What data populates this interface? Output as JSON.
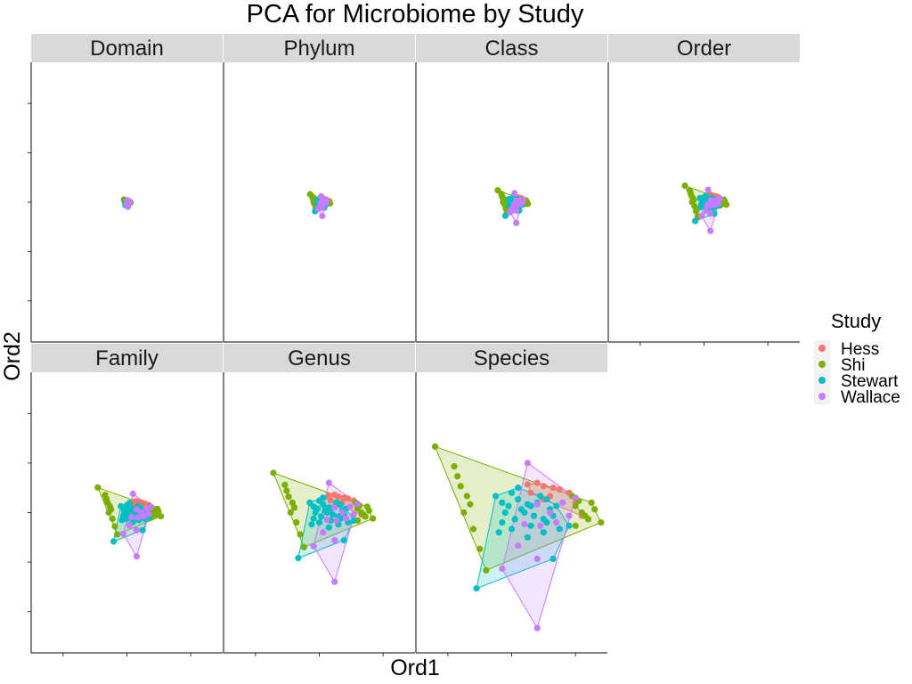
{
  "chart_data": {
    "type": "scatter",
    "title": "PCA for Microbiome by Study",
    "xlabel": "Ord1",
    "ylabel": "Ord2",
    "xlim": [
      -0.3,
      0.3
    ],
    "ylim": [
      -0.85,
      0.85
    ],
    "grid": false,
    "legend": {
      "title": "Study",
      "position": "right",
      "entries": [
        "Hess",
        "Shi",
        "Stewart",
        "Wallace"
      ]
    },
    "colors": {
      "Hess": "#F8766D",
      "Shi": "#7CAE00",
      "Stewart": "#00BFC4",
      "Wallace": "#C77CFF"
    },
    "panels": [
      {
        "name": "Domain",
        "spread": 0.04
      },
      {
        "name": "Phylum",
        "spread": 0.12
      },
      {
        "name": "Class",
        "spread": 0.18
      },
      {
        "name": "Order",
        "spread": 0.25
      },
      {
        "name": "Family",
        "spread": 0.38
      },
      {
        "name": "Genus",
        "spread": 0.6
      },
      {
        "name": "Species",
        "spread": 1.0
      }
    ],
    "series": [
      {
        "name": "Hess",
        "points": [
          [
            0.05,
            0.17
          ],
          [
            0.08,
            0.18
          ],
          [
            0.1,
            0.16
          ],
          [
            0.13,
            0.15
          ],
          [
            0.18,
            0.12
          ],
          [
            0.15,
            0.14
          ],
          [
            0.2,
            0.06
          ],
          [
            0.22,
            -0.02
          ],
          [
            0.06,
            0.12
          ],
          [
            0.12,
            0.1
          ],
          [
            0.1,
            0.08
          ]
        ]
      },
      {
        "name": "Shi",
        "points": [
          [
            -0.24,
            0.4
          ],
          [
            -0.18,
            0.28
          ],
          [
            -0.17,
            0.22
          ],
          [
            -0.16,
            0.16
          ],
          [
            -0.14,
            0.1
          ],
          [
            -0.13,
            0.05
          ],
          [
            -0.15,
            0.0
          ],
          [
            -0.12,
            -0.1
          ],
          [
            -0.1,
            -0.22
          ],
          [
            -0.08,
            -0.35
          ],
          [
            0.2,
            0.04
          ],
          [
            0.22,
            0.0
          ],
          [
            0.24,
            -0.04
          ],
          [
            0.28,
            -0.06
          ],
          [
            0.26,
            0.02
          ],
          [
            0.2,
            -0.08
          ],
          [
            0.23,
            -0.02
          ],
          [
            0.25,
            0.06
          ],
          [
            0.19,
            0.1
          ],
          [
            0.21,
            0.07
          ]
        ]
      },
      {
        "name": "Stewart",
        "points": [
          [
            -0.11,
            -0.46
          ],
          [
            -0.05,
            0.1
          ],
          [
            -0.03,
            -0.06
          ],
          [
            -0.01,
            0.04
          ],
          [
            0.01,
            -0.04
          ],
          [
            0.03,
            0.02
          ],
          [
            0.05,
            0.05
          ],
          [
            0.07,
            -0.02
          ],
          [
            0.0,
            0.12
          ],
          [
            0.02,
            0.08
          ],
          [
            0.04,
            0.0
          ],
          [
            -0.02,
            0.0
          ],
          [
            0.06,
            0.04
          ],
          [
            0.08,
            0.06
          ],
          [
            0.1,
            -0.04
          ],
          [
            0.12,
            0.02
          ],
          [
            0.09,
            0.1
          ],
          [
            0.11,
            -0.06
          ],
          [
            0.0,
            -0.1
          ],
          [
            0.05,
            -0.15
          ],
          [
            0.1,
            -0.12
          ],
          [
            0.15,
            -0.1
          ],
          [
            0.18,
            -0.08
          ],
          [
            -0.04,
            -0.12
          ],
          [
            0.14,
            0.04
          ],
          [
            0.13,
            -0.02
          ],
          [
            0.02,
            0.15
          ],
          [
            0.06,
            -0.08
          ],
          [
            -0.03,
            0.06
          ],
          [
            0.11,
            0.08
          ],
          [
            0.13,
            -0.28
          ]
        ]
      },
      {
        "name": "Wallace",
        "points": [
          [
            0.05,
            0.3
          ],
          [
            0.08,
            0.05
          ],
          [
            0.12,
            0.0
          ],
          [
            0.16,
            0.06
          ],
          [
            0.2,
            0.09
          ],
          [
            0.18,
            -0.02
          ],
          [
            0.14,
            -0.06
          ],
          [
            0.09,
            -0.08
          ],
          [
            0.04,
            -0.07
          ],
          [
            0.02,
            -0.2
          ],
          [
            0.08,
            -0.28
          ],
          [
            -0.03,
            -0.34
          ],
          [
            0.08,
            -0.7
          ]
        ]
      }
    ]
  }
}
